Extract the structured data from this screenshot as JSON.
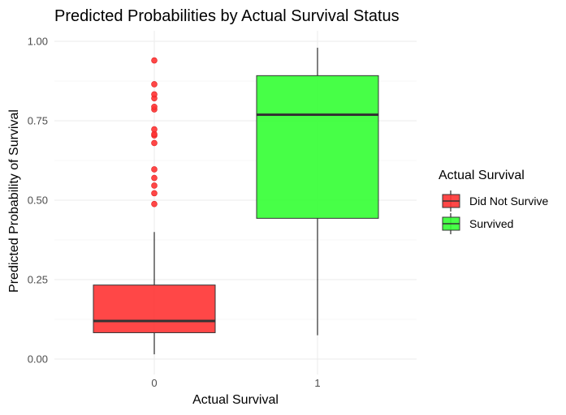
{
  "chart_data": {
    "type": "boxplot",
    "title": "Predicted Probabilities by Actual Survival Status",
    "xlabel": "Actual Survival",
    "ylabel": "Predicted Probability of Survival",
    "categories": [
      "0",
      "1"
    ],
    "ylim": [
      0,
      1
    ],
    "yticks": [
      0.0,
      0.25,
      0.5,
      0.75,
      1.0
    ],
    "ytick_labels": [
      "0.00",
      "0.25",
      "0.50",
      "0.75",
      "1.00"
    ],
    "grid": true,
    "legend": {
      "title": "Actual Survival",
      "position": "right",
      "entries": [
        {
          "label": "Did Not Survive",
          "color": "#ff3333"
        },
        {
          "label": "Survived",
          "color": "#33ff33"
        }
      ]
    },
    "boxes": [
      {
        "category": "0",
        "series": "Did Not Survive",
        "color": "#ff3333",
        "min": 0.015,
        "q1": 0.083,
        "median": 0.12,
        "q3": 0.233,
        "max": 0.4,
        "outliers": [
          0.488,
          0.522,
          0.546,
          0.57,
          0.597,
          0.68,
          0.704,
          0.708,
          0.723,
          0.786,
          0.794,
          0.821,
          0.833,
          0.865,
          0.94
        ]
      },
      {
        "category": "1",
        "series": "Survived",
        "color": "#33ff33",
        "min": 0.075,
        "q1": 0.443,
        "median": 0.769,
        "q3": 0.892,
        "max": 0.98,
        "outliers": []
      }
    ]
  }
}
